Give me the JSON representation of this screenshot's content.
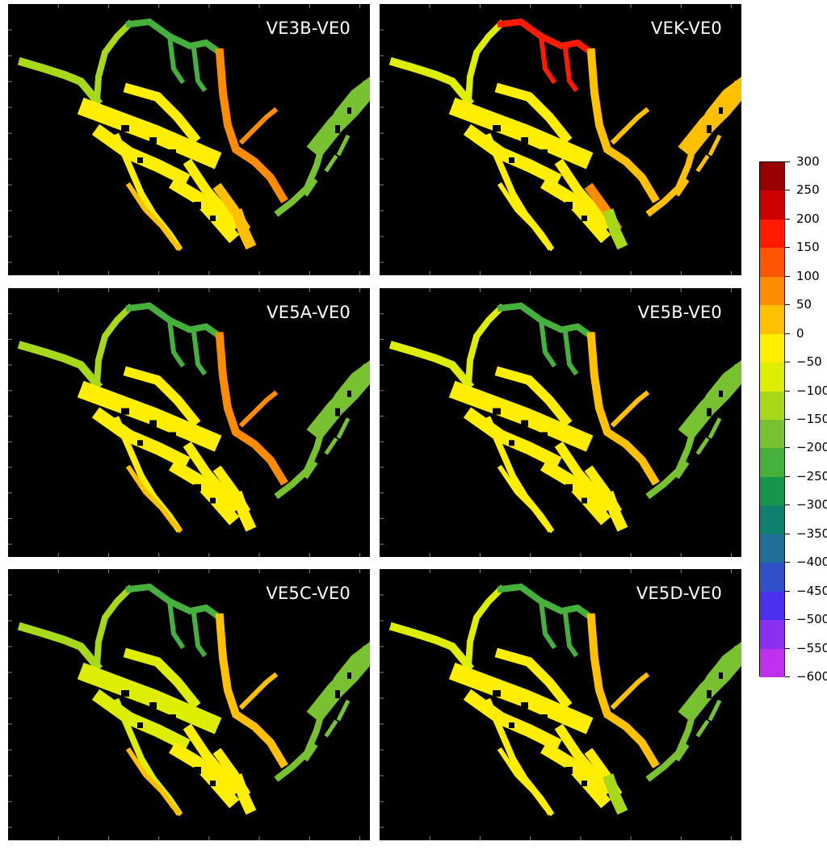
{
  "panels": [
    {
      "title": "VE3B-VE0",
      "v": {
        "nw": -120,
        "main": -40,
        "mid": -20,
        "right": 60,
        "east": -190,
        "top": -200,
        "loop": 50,
        "south": 10,
        "tail": 10
      }
    },
    {
      "title": "VEK-VE0",
      "v": {
        "nw": -60,
        "main": -40,
        "mid": -10,
        "right": 40,
        "east": 20,
        "top": 160,
        "loop": 100,
        "south": -110,
        "tail": -30
      }
    },
    {
      "title": "VE5A-VE0",
      "v": {
        "nw": -120,
        "main": -40,
        "mid": -20,
        "right": 60,
        "east": -190,
        "top": -210,
        "loop": -20,
        "south": -20,
        "tail": 10
      }
    },
    {
      "title": "VE5B-VE0",
      "v": {
        "nw": -80,
        "main": -40,
        "mid": -30,
        "right": 50,
        "east": -190,
        "top": -200,
        "loop": -30,
        "south": -40,
        "tail": -10
      }
    },
    {
      "title": "VE5C-VE0",
      "v": {
        "nw": -110,
        "main": -50,
        "mid": -30,
        "right": 50,
        "east": -190,
        "top": -210,
        "loop": -30,
        "south": -40,
        "tail": 10
      }
    },
    {
      "title": "VE5D-VE0",
      "v": {
        "nw": -80,
        "main": -40,
        "mid": -30,
        "right": 50,
        "east": -190,
        "top": -220,
        "loop": -20,
        "south": -100,
        "tail": -10
      }
    }
  ],
  "colorbar": {
    "labels": [
      "300",
      "250",
      "200",
      "150",
      "100",
      "50",
      "0",
      "−50",
      "−100",
      "−150",
      "−200",
      "−250",
      "−300",
      "−350",
      "−400",
      "−450",
      "−500",
      "−550",
      "−600"
    ],
    "colors": [
      "#990000",
      "#cc0000",
      "#ff1a00",
      "#ff5500",
      "#ff8c00",
      "#ffc000",
      "#ffee00",
      "#ddee00",
      "#a8d81a",
      "#78c232",
      "#46b03c",
      "#14964c",
      "#0f7f70",
      "#1f6f99",
      "#2f50c8",
      "#4a30f0",
      "#8a30f0",
      "#c030f0"
    ]
  }
}
